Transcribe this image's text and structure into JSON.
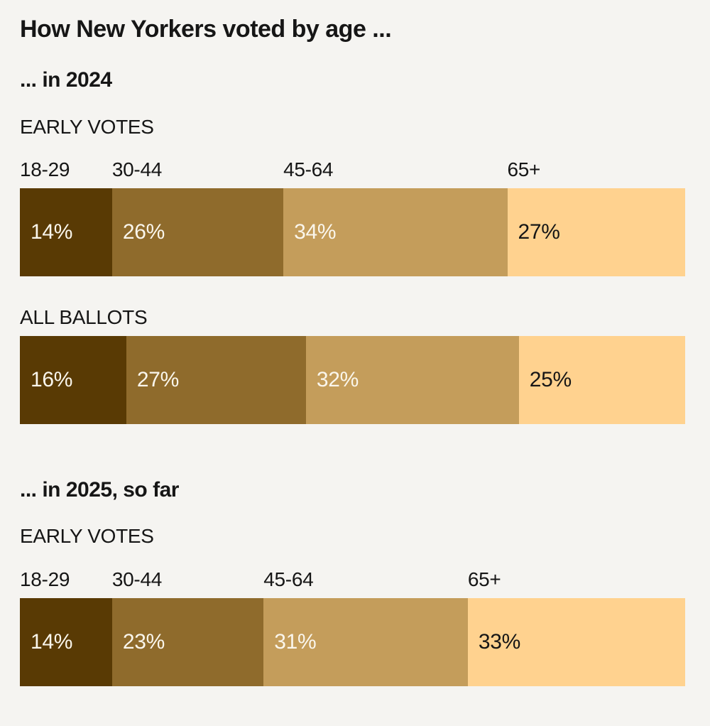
{
  "title": "How New Yorkers voted by age ...",
  "sections": [
    {
      "heading": "... in 2024"
    },
    {
      "heading": "... in 2025, so far"
    }
  ],
  "colors": {
    "background": "#f5f4f1",
    "segments": [
      "#593a04",
      "#8f6b2c",
      "#c49d5b",
      "#ffd28f"
    ],
    "value_text_light": "#faf6ec",
    "value_text_dark": "#161616",
    "heading_text": "#161616"
  },
  "chart_data": [
    {
      "type": "bar",
      "subtype": "horizontal-stacked",
      "section": "... in 2024",
      "label": "EARLY VOTES",
      "categories": [
        "18-29",
        "30-44",
        "45-64",
        "65+"
      ],
      "values": [
        14,
        26,
        34,
        27
      ],
      "unit": "%",
      "show_category_labels": true,
      "value_labels_inside": true
    },
    {
      "type": "bar",
      "subtype": "horizontal-stacked",
      "section": "... in 2024",
      "label": "ALL BALLOTS",
      "categories": [
        "18-29",
        "30-44",
        "45-64",
        "65+"
      ],
      "values": [
        16,
        27,
        32,
        25
      ],
      "unit": "%",
      "show_category_labels": false,
      "value_labels_inside": true
    },
    {
      "type": "bar",
      "subtype": "horizontal-stacked",
      "section": "... in 2025, so far",
      "label": "EARLY VOTES",
      "categories": [
        "18-29",
        "30-44",
        "45-64",
        "65+"
      ],
      "values": [
        14,
        23,
        31,
        33
      ],
      "unit": "%",
      "show_category_labels": true,
      "value_labels_inside": true
    }
  ]
}
